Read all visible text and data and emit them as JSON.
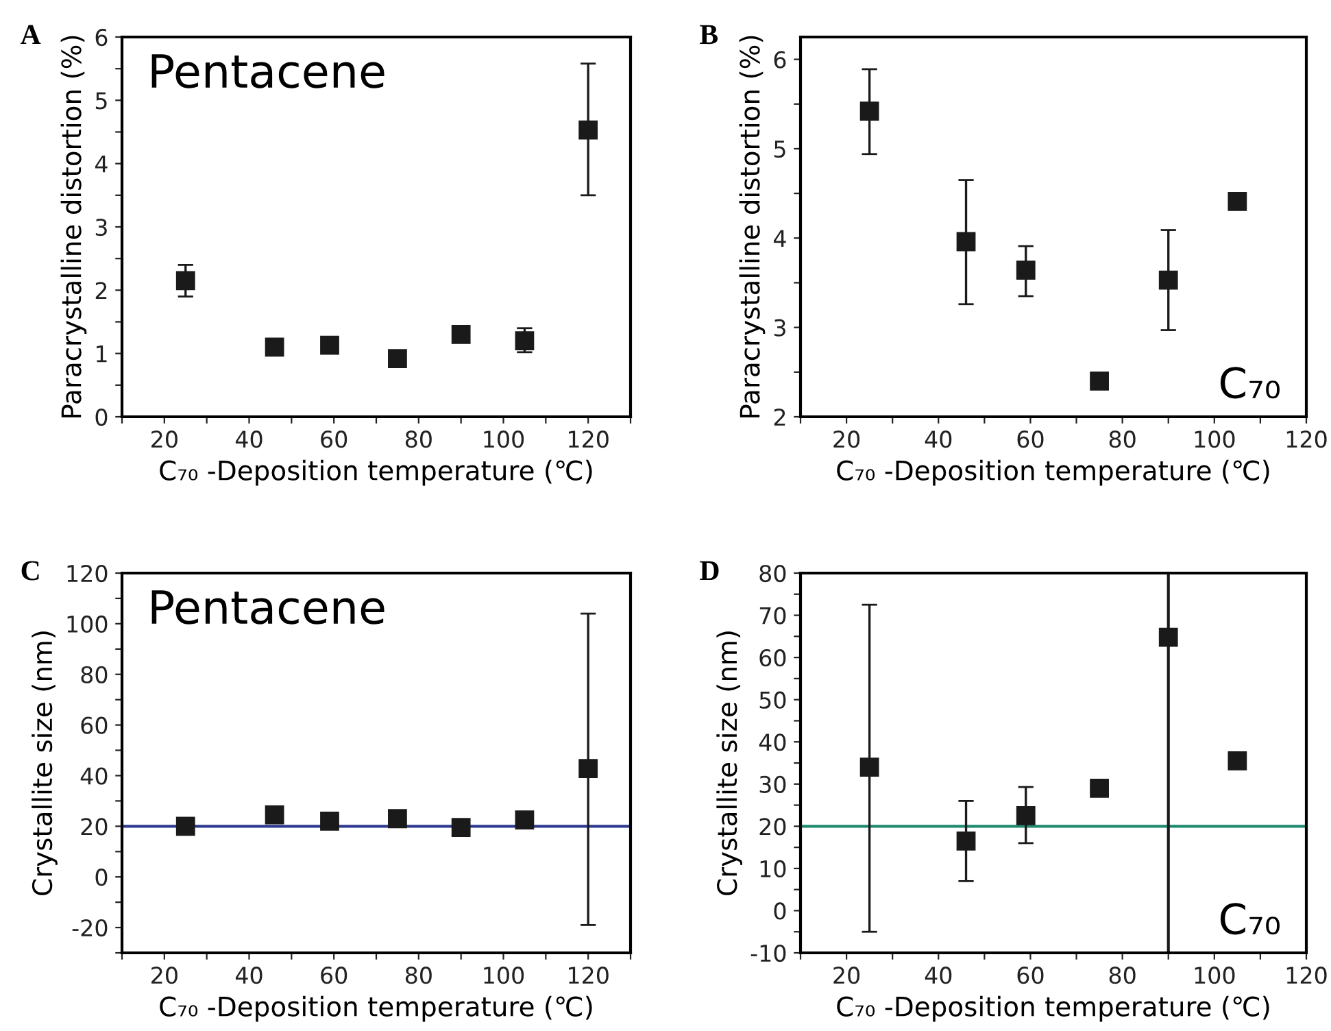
{
  "chart_data": [
    {
      "type": "scatter",
      "title": "A",
      "xlabel": "C₇₀ -Deposition temperature (℃)",
      "ylabel": "Paracrystalline distortion (%)",
      "annotations": [
        "Pentacene"
      ],
      "x": [
        25,
        46,
        59,
        75,
        90,
        105,
        120
      ],
      "values": [
        2.15,
        1.1,
        1.13,
        0.92,
        1.3,
        1.2,
        4.53
      ],
      "errors": [
        [
          1.9,
          2.4
        ],
        null,
        null,
        null,
        null,
        [
          1.02,
          1.4
        ],
        [
          3.5,
          5.58
        ]
      ],
      "color": "#1a1a1a",
      "marker": "square",
      "xlim": [
        10,
        130
      ],
      "xticks": [
        {
          "value": 10,
          "label": null
        },
        20,
        {
          "value": 30,
          "label": null
        },
        40,
        {
          "value": 50,
          "label": null
        },
        60,
        {
          "value": 70,
          "label": null
        },
        80,
        {
          "value": 90,
          "label": null
        },
        100,
        {
          "value": 110,
          "label": null
        },
        120,
        {
          "value": 130,
          "label": null
        }
      ],
      "ylim": [
        0,
        6
      ],
      "yticks": [
        0,
        {
          "value": 0.5,
          "label": null
        },
        1,
        {
          "value": 1.5,
          "label": null
        },
        2,
        {
          "value": 2.5,
          "label": null
        },
        3,
        {
          "value": 3.5,
          "label": null
        },
        4,
        {
          "value": 4.5,
          "label": null
        },
        5,
        {
          "value": 5.5,
          "label": null
        },
        6
      ]
    },
    {
      "type": "scatter",
      "title": "B",
      "xlabel": "C₇₀ -Deposition temperature (℃)",
      "ylabel": "Paracrystalline distortion (%)",
      "annotations": [
        "C₇₀"
      ],
      "x": [
        25,
        46,
        59,
        75,
        90,
        105
      ],
      "values": [
        5.42,
        3.96,
        3.64,
        2.4,
        3.53,
        4.41
      ],
      "errors": [
        [
          4.94,
          5.89
        ],
        [
          3.26,
          4.65
        ],
        [
          3.35,
          3.91
        ],
        null,
        [
          2.97,
          4.09
        ],
        null
      ],
      "color": "#1a1a1a",
      "marker": "square",
      "xlim": [
        10,
        120
      ],
      "xticks": [
        {
          "value": 10,
          "label": null
        },
        20,
        {
          "value": 30,
          "label": null
        },
        40,
        {
          "value": 50,
          "label": null
        },
        60,
        {
          "value": 70,
          "label": null
        },
        80,
        {
          "value": 90,
          "label": null
        },
        100,
        {
          "value": 110,
          "label": null
        },
        120
      ],
      "ylim": [
        2,
        6.25
      ],
      "yticks": [
        2,
        {
          "value": 2.5,
          "label": null
        },
        3,
        {
          "value": 3.5,
          "label": null
        },
        4,
        {
          "value": 4.5,
          "label": null
        },
        5,
        {
          "value": 5.5,
          "label": null
        },
        6
      ]
    },
    {
      "type": "scatter",
      "title": "C",
      "xlabel": "C₇₀ -Deposition temperature (℃)",
      "ylabel": "Crystallite size (nm)",
      "annotations": [
        "Pentacene"
      ],
      "x": [
        25,
        46,
        59,
        75,
        90,
        105,
        120
      ],
      "values": [
        20,
        24.5,
        22,
        23,
        19.5,
        22.5,
        42.8
      ],
      "errors": [
        [
          17,
          23
        ],
        null,
        null,
        null,
        null,
        null,
        [
          -19,
          104
        ]
      ],
      "color": "#1a1a1a",
      "marker": "square",
      "ref_lines": [
        {
          "axis": "y",
          "value": 20,
          "label": null,
          "color": "#2e3a92"
        }
      ],
      "xlim": [
        10,
        130
      ],
      "xticks": [
        {
          "value": 10,
          "label": null
        },
        20,
        {
          "value": 30,
          "label": null
        },
        40,
        {
          "value": 50,
          "label": null
        },
        60,
        {
          "value": 70,
          "label": null
        },
        80,
        {
          "value": 90,
          "label": null
        },
        100,
        {
          "value": 110,
          "label": null
        },
        120,
        {
          "value": 130,
          "label": null
        }
      ],
      "ylim": [
        -30,
        120
      ],
      "yticks": [
        {
          "value": -30,
          "label": null
        },
        -20,
        {
          "value": -10,
          "label": null
        },
        0,
        {
          "value": 10,
          "label": null
        },
        20,
        {
          "value": 30,
          "label": null
        },
        40,
        {
          "value": 50,
          "label": null
        },
        60,
        {
          "value": 70,
          "label": null
        },
        80,
        {
          "value": 90,
          "label": null
        },
        100,
        {
          "value": 110,
          "label": null
        },
        120
      ]
    },
    {
      "type": "scatter",
      "title": "D",
      "xlabel": "C₇₀ -Deposition temperature (℃)",
      "ylabel": "Crystallite size (nm)",
      "annotations": [
        "C₇₀"
      ],
      "x": [
        25,
        46,
        59,
        75,
        90,
        105
      ],
      "values": [
        34,
        16.5,
        22.5,
        29,
        64.8,
        35.5
      ],
      "errors": [
        [
          -5,
          72.5
        ],
        [
          7,
          26
        ],
        [
          16,
          29.3
        ],
        null,
        null,
        null
      ],
      "color": "#1a1a1a",
      "marker": "square",
      "ref_lines": [
        {
          "axis": "y",
          "value": 20,
          "label": null,
          "color": "#1f8a70"
        },
        {
          "axis": "x",
          "value": 90,
          "label": null,
          "color": "#1a1a1a"
        }
      ],
      "xlim": [
        10,
        120
      ],
      "xticks": [
        {
          "value": 10,
          "label": null
        },
        20,
        {
          "value": 30,
          "label": null
        },
        40,
        {
          "value": 50,
          "label": null
        },
        60,
        {
          "value": 70,
          "label": null
        },
        80,
        {
          "value": 90,
          "label": null
        },
        100,
        {
          "value": 110,
          "label": null
        },
        120
      ],
      "ylim": [
        -10,
        80
      ],
      "yticks": [
        -10,
        {
          "value": -5,
          "label": null
        },
        0,
        {
          "value": 5,
          "label": null
        },
        10,
        {
          "value": 15,
          "label": null
        },
        20,
        {
          "value": 25,
          "label": null
        },
        30,
        {
          "value": 35,
          "label": null
        },
        40,
        {
          "value": 45,
          "label": null
        },
        50,
        {
          "value": 55,
          "label": null
        },
        60,
        {
          "value": 65,
          "label": null
        },
        70,
        {
          "value": 75,
          "label": null
        },
        80
      ]
    }
  ]
}
